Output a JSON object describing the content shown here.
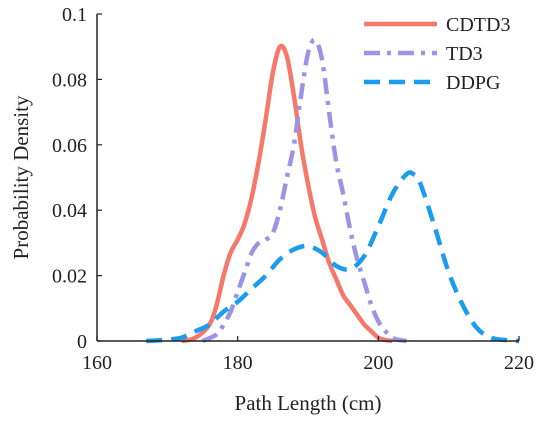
{
  "chart_data": {
    "type": "line",
    "title": "",
    "xlabel": "Path Length (cm)",
    "ylabel": "Probability Density",
    "xlim": [
      160,
      220
    ],
    "ylim": [
      0,
      0.1
    ],
    "xticks": [
      160,
      180,
      200,
      220
    ],
    "yticks": [
      0,
      0.02,
      0.04,
      0.06,
      0.08,
      0.1
    ],
    "xtick_labels": [
      "160",
      "180",
      "200",
      "220"
    ],
    "ytick_labels": [
      "0",
      "0.02",
      "0.04",
      "0.06",
      "0.08",
      "0.1"
    ],
    "grid": false,
    "legend_position": "top-right",
    "series": [
      {
        "name": "CDTD3",
        "color": "#f5786a",
        "dash": "solid",
        "x": [
          172,
          174,
          176,
          177,
          178,
          179,
          180,
          181,
          182,
          183,
          184,
          185,
          186,
          187,
          188,
          189,
          190,
          191,
          192,
          193,
          194,
          195,
          196,
          197,
          198,
          199,
          200,
          201,
          202
        ],
        "y": [
          0,
          0.001,
          0.005,
          0.011,
          0.02,
          0.027,
          0.031,
          0.036,
          0.044,
          0.055,
          0.068,
          0.082,
          0.09,
          0.087,
          0.075,
          0.06,
          0.048,
          0.038,
          0.031,
          0.024,
          0.019,
          0.014,
          0.011,
          0.008,
          0.005,
          0.003,
          0.001,
          0.0003,
          0
        ]
      },
      {
        "name": "TD3",
        "color": "#9b94e6",
        "dash": "dashdot",
        "x": [
          175,
          177,
          178,
          179,
          180,
          181,
          182,
          183,
          184,
          185,
          186,
          187,
          188,
          189,
          190,
          191,
          192,
          193,
          194,
          195,
          196,
          197,
          198,
          199,
          200,
          201,
          202,
          203,
          204
        ],
        "y": [
          0,
          0.002,
          0.005,
          0.009,
          0.015,
          0.021,
          0.027,
          0.03,
          0.031,
          0.033,
          0.04,
          0.05,
          0.06,
          0.075,
          0.088,
          0.092,
          0.086,
          0.07,
          0.055,
          0.045,
          0.034,
          0.025,
          0.018,
          0.011,
          0.006,
          0.003,
          0.001,
          0.0003,
          0
        ]
      },
      {
        "name": "DDPG",
        "color": "#1a9cf0",
        "dash": "dashed",
        "x": [
          167,
          170,
          172,
          174,
          176,
          178,
          180,
          182,
          184,
          186,
          188,
          190,
          192,
          194,
          196,
          198,
          200,
          202,
          204,
          205,
          206,
          208,
          210,
          212,
          214,
          216,
          218,
          220
        ],
        "y": [
          0,
          0.0004,
          0.001,
          0.003,
          0.005,
          0.009,
          0.012,
          0.016,
          0.02,
          0.025,
          0.028,
          0.029,
          0.027,
          0.023,
          0.022,
          0.026,
          0.035,
          0.045,
          0.051,
          0.051,
          0.048,
          0.035,
          0.021,
          0.011,
          0.004,
          0.001,
          0.0003,
          0
        ]
      }
    ]
  }
}
